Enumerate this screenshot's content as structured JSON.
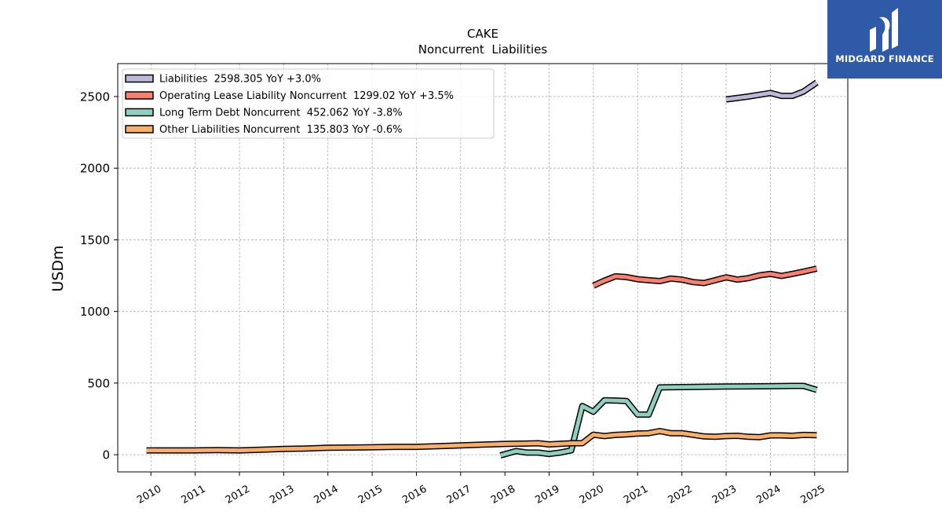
{
  "chart_data": {
    "type": "line",
    "title": "CAKE",
    "subtitle": "Noncurrent  Liabilities",
    "ylabel": "USDm",
    "xlabel": "",
    "ylim": [
      -120,
      2730
    ],
    "xlim": [
      2009.25,
      2025.75
    ],
    "yticks": [
      0,
      500,
      1000,
      1500,
      2000,
      2500
    ],
    "xticks": [
      2010,
      2011,
      2012,
      2013,
      2014,
      2015,
      2016,
      2017,
      2018,
      2019,
      2020,
      2021,
      2022,
      2023,
      2024,
      2025
    ],
    "grid": true,
    "legend_position": "top-left",
    "series": [
      {
        "name": "Liabilities",
        "legend_label": "Liabilities  2598.305 YoY +3.0%",
        "color": "#bcb8d9",
        "points": [
          [
            2023.0,
            2480
          ],
          [
            2023.5,
            2500
          ],
          [
            2024.0,
            2525
          ],
          [
            2024.25,
            2505
          ],
          [
            2024.5,
            2505
          ],
          [
            2024.75,
            2535
          ],
          [
            2025.05,
            2598
          ]
        ]
      },
      {
        "name": "Operating Lease Liability Noncurrent",
        "legend_label": "Operating Lease Liability Noncurrent  1299.02 YoY +3.5%",
        "color": "#f8806f",
        "points": [
          [
            2020.0,
            1180
          ],
          [
            2020.25,
            1215
          ],
          [
            2020.5,
            1245
          ],
          [
            2020.75,
            1240
          ],
          [
            2021.0,
            1225
          ],
          [
            2021.25,
            1218
          ],
          [
            2021.5,
            1212
          ],
          [
            2021.75,
            1230
          ],
          [
            2022.0,
            1222
          ],
          [
            2022.25,
            1205
          ],
          [
            2022.5,
            1198
          ],
          [
            2022.75,
            1218
          ],
          [
            2023.0,
            1238
          ],
          [
            2023.25,
            1222
          ],
          [
            2023.5,
            1232
          ],
          [
            2023.75,
            1252
          ],
          [
            2024.0,
            1262
          ],
          [
            2024.25,
            1248
          ],
          [
            2024.5,
            1262
          ],
          [
            2024.75,
            1278
          ],
          [
            2025.05,
            1299
          ]
        ]
      },
      {
        "name": "Long Term Debt Noncurrent",
        "legend_label": "Long Term Debt Noncurrent  452.062 YoY -3.8%",
        "color": "#8ecfc0",
        "points": [
          [
            2017.9,
            -5
          ],
          [
            2018.25,
            25
          ],
          [
            2018.5,
            15
          ],
          [
            2018.75,
            15
          ],
          [
            2019.0,
            5
          ],
          [
            2019.25,
            15
          ],
          [
            2019.5,
            30
          ],
          [
            2019.75,
            340
          ],
          [
            2020.0,
            300
          ],
          [
            2020.25,
            380
          ],
          [
            2020.5,
            378
          ],
          [
            2020.75,
            375
          ],
          [
            2021.0,
            280
          ],
          [
            2021.25,
            280
          ],
          [
            2021.5,
            470
          ],
          [
            2022.0,
            472
          ],
          [
            2022.5,
            474
          ],
          [
            2023.0,
            476
          ],
          [
            2023.5,
            477
          ],
          [
            2024.0,
            478
          ],
          [
            2024.5,
            480
          ],
          [
            2024.75,
            480
          ],
          [
            2025.05,
            452
          ]
        ]
      },
      {
        "name": "Other Liabilities Noncurrent",
        "legend_label": "Other Liabilities Noncurrent  135.803 YoY -0.6%",
        "color": "#f9ae6a",
        "points": [
          [
            2009.9,
            30
          ],
          [
            2010.5,
            30
          ],
          [
            2011.0,
            30
          ],
          [
            2011.5,
            32
          ],
          [
            2012.0,
            30
          ],
          [
            2012.5,
            35
          ],
          [
            2013.0,
            40
          ],
          [
            2013.5,
            43
          ],
          [
            2014.0,
            48
          ],
          [
            2014.5,
            50
          ],
          [
            2015.0,
            52
          ],
          [
            2015.5,
            55
          ],
          [
            2016.0,
            55
          ],
          [
            2016.5,
            60
          ],
          [
            2017.0,
            65
          ],
          [
            2017.5,
            70
          ],
          [
            2018.0,
            75
          ],
          [
            2018.5,
            78
          ],
          [
            2018.75,
            80
          ],
          [
            2019.0,
            72
          ],
          [
            2019.5,
            80
          ],
          [
            2019.75,
            80
          ],
          [
            2020.0,
            140
          ],
          [
            2020.25,
            130
          ],
          [
            2020.5,
            138
          ],
          [
            2020.75,
            142
          ],
          [
            2021.0,
            148
          ],
          [
            2021.25,
            150
          ],
          [
            2021.5,
            165
          ],
          [
            2021.75,
            150
          ],
          [
            2022.0,
            150
          ],
          [
            2022.5,
            128
          ],
          [
            2022.75,
            125
          ],
          [
            2023.0,
            130
          ],
          [
            2023.25,
            132
          ],
          [
            2023.5,
            125
          ],
          [
            2023.75,
            122
          ],
          [
            2024.0,
            135
          ],
          [
            2024.25,
            135
          ],
          [
            2024.5,
            132
          ],
          [
            2024.75,
            138
          ],
          [
            2025.05,
            136
          ]
        ]
      }
    ]
  },
  "logo": {
    "text": "MIDGARD FINANCE",
    "background": "#2f5aa8"
  }
}
